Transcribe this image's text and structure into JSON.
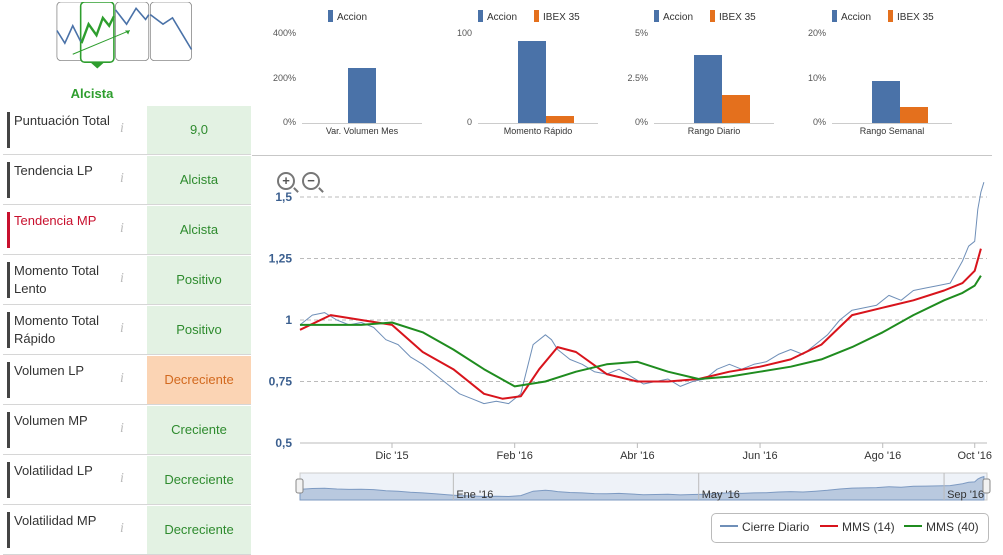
{
  "trend_selector": {
    "selected_label": "Alcista"
  },
  "indicators": [
    {
      "name": "Puntuación Total",
      "value": "9,0",
      "status": "positive",
      "active": false
    },
    {
      "name": "Tendencia LP",
      "value": "Alcista",
      "status": "positive",
      "active": false
    },
    {
      "name": "Tendencia MP",
      "value": "Alcista",
      "status": "positive",
      "active": true
    },
    {
      "name": "Momento Total Lento",
      "value": "Positivo",
      "status": "positive",
      "active": false
    },
    {
      "name": "Momento Total Rápido",
      "value": "Positivo",
      "status": "positive",
      "active": false
    },
    {
      "name": "Volumen LP",
      "value": "Decreciente",
      "status": "warning",
      "active": false
    },
    {
      "name": "Volumen MP",
      "value": "Creciente",
      "status": "positive",
      "active": false
    },
    {
      "name": "Volatilidad LP",
      "value": "Decreciente",
      "status": "positive",
      "active": false
    },
    {
      "name": "Volatilidad MP",
      "value": "Decreciente",
      "status": "positive",
      "active": false
    }
  ],
  "info_glyph": "i",
  "colors": {
    "accion": "#4a72a8",
    "ibex": "#e4701d",
    "close": "#6f8fb8",
    "mms14": "#d8141c",
    "mms40": "#1f8c1f",
    "positive_bg": "#e3f2e3",
    "warning_bg": "#fbd4b4"
  },
  "chart_data": [
    {
      "type": "bar",
      "title": "",
      "xlabel": "Var. Volumen Mes",
      "ticks": [
        "0%",
        "200%",
        "400%"
      ],
      "ylim": [
        0,
        400
      ],
      "series": [
        {
          "name": "Accion",
          "values": [
            245
          ]
        }
      ]
    },
    {
      "type": "bar",
      "title": "",
      "xlabel": "Momento Rápido",
      "ticks": [
        "0",
        "100"
      ],
      "ylim": [
        0,
        100
      ],
      "series": [
        {
          "name": "Accion",
          "values": [
            92
          ]
        },
        {
          "name": "IBEX 35",
          "values": [
            8
          ]
        }
      ]
    },
    {
      "type": "bar",
      "title": "",
      "xlabel": "Rango Diario",
      "ticks": [
        "0%",
        "2.5%",
        "5%"
      ],
      "ylim": [
        0,
        5
      ],
      "series": [
        {
          "name": "Accion",
          "values": [
            3.8
          ]
        },
        {
          "name": "IBEX 35",
          "values": [
            1.6
          ]
        }
      ]
    },
    {
      "type": "bar",
      "title": "",
      "xlabel": "Rango Semanal",
      "ticks": [
        "0%",
        "10%",
        "20%"
      ],
      "ylim": [
        0,
        20
      ],
      "series": [
        {
          "name": "Accion",
          "values": [
            9.5
          ]
        },
        {
          "name": "IBEX 35",
          "values": [
            3.5
          ]
        }
      ]
    },
    {
      "type": "line",
      "title": "",
      "yticks": [
        "0,5",
        "0,75",
        "1",
        "1,25",
        "1,5"
      ],
      "ylim": [
        0.5,
        1.5
      ],
      "xticks": [
        "Dic '15",
        "Feb '16",
        "Abr '16",
        "Jun '16",
        "Ago '16",
        "Oct '16"
      ],
      "xrange_months": [
        0,
        11.2
      ],
      "xtick_months": [
        1.5,
        3.5,
        5.5,
        7.5,
        9.5,
        11.0
      ],
      "navigator_labels": [
        "Ene '16",
        "May '16",
        "Sep '16"
      ],
      "navigator_months": [
        2.5,
        6.5,
        10.5
      ],
      "series": [
        {
          "name": "Cierre Diario",
          "x": [
            0,
            0.2,
            0.4,
            0.6,
            0.8,
            1.0,
            1.2,
            1.4,
            1.6,
            1.8,
            2.0,
            2.2,
            2.4,
            2.6,
            2.8,
            3.0,
            3.2,
            3.4,
            3.6,
            3.8,
            4.0,
            4.1,
            4.2,
            4.4,
            4.6,
            4.8,
            5.0,
            5.2,
            5.4,
            5.6,
            5.8,
            6.0,
            6.2,
            6.4,
            6.6,
            6.8,
            7.0,
            7.2,
            7.4,
            7.6,
            7.8,
            8.0,
            8.2,
            8.4,
            8.6,
            8.8,
            9.0,
            9.2,
            9.4,
            9.6,
            9.8,
            10.0,
            10.2,
            10.4,
            10.6,
            10.8,
            10.9,
            11.0,
            11.05,
            11.1,
            11.15
          ],
          "y": [
            0.98,
            1.02,
            1.03,
            1.0,
            0.98,
            0.99,
            0.97,
            0.92,
            0.9,
            0.85,
            0.82,
            0.78,
            0.74,
            0.7,
            0.68,
            0.66,
            0.67,
            0.66,
            0.7,
            0.9,
            0.94,
            0.92,
            0.88,
            0.84,
            0.82,
            0.79,
            0.78,
            0.8,
            0.77,
            0.74,
            0.75,
            0.76,
            0.73,
            0.75,
            0.76,
            0.8,
            0.82,
            0.8,
            0.82,
            0.83,
            0.86,
            0.88,
            0.86,
            0.9,
            0.94,
            1.0,
            1.04,
            1.05,
            1.06,
            1.1,
            1.08,
            1.12,
            1.13,
            1.14,
            1.15,
            1.24,
            1.3,
            1.32,
            1.45,
            1.52,
            1.56
          ]
        },
        {
          "name": "MMS (14)",
          "x": [
            0,
            0.5,
            1.0,
            1.5,
            2.0,
            2.5,
            3.0,
            3.3,
            3.6,
            3.9,
            4.2,
            4.5,
            5.0,
            5.5,
            6.0,
            6.5,
            7.0,
            7.5,
            8.0,
            8.5,
            9.0,
            9.5,
            10.0,
            10.5,
            10.8,
            11.0,
            11.1
          ],
          "y": [
            0.96,
            1.02,
            1.0,
            0.98,
            0.87,
            0.8,
            0.7,
            0.68,
            0.69,
            0.8,
            0.89,
            0.87,
            0.78,
            0.75,
            0.75,
            0.76,
            0.79,
            0.81,
            0.84,
            0.9,
            1.02,
            1.05,
            1.08,
            1.12,
            1.15,
            1.2,
            1.29
          ]
        },
        {
          "name": "MMS (40)",
          "x": [
            0,
            0.5,
            1.0,
            1.5,
            2.0,
            2.5,
            3.0,
            3.5,
            4.0,
            4.5,
            5.0,
            5.5,
            6.0,
            6.5,
            7.0,
            7.5,
            8.0,
            8.5,
            9.0,
            9.5,
            10.0,
            10.5,
            10.8,
            11.0,
            11.1
          ],
          "y": [
            0.98,
            0.98,
            0.98,
            0.99,
            0.95,
            0.88,
            0.8,
            0.73,
            0.75,
            0.79,
            0.82,
            0.83,
            0.79,
            0.76,
            0.77,
            0.79,
            0.81,
            0.84,
            0.89,
            0.95,
            1.02,
            1.08,
            1.11,
            1.14,
            1.18
          ]
        }
      ]
    }
  ]
}
